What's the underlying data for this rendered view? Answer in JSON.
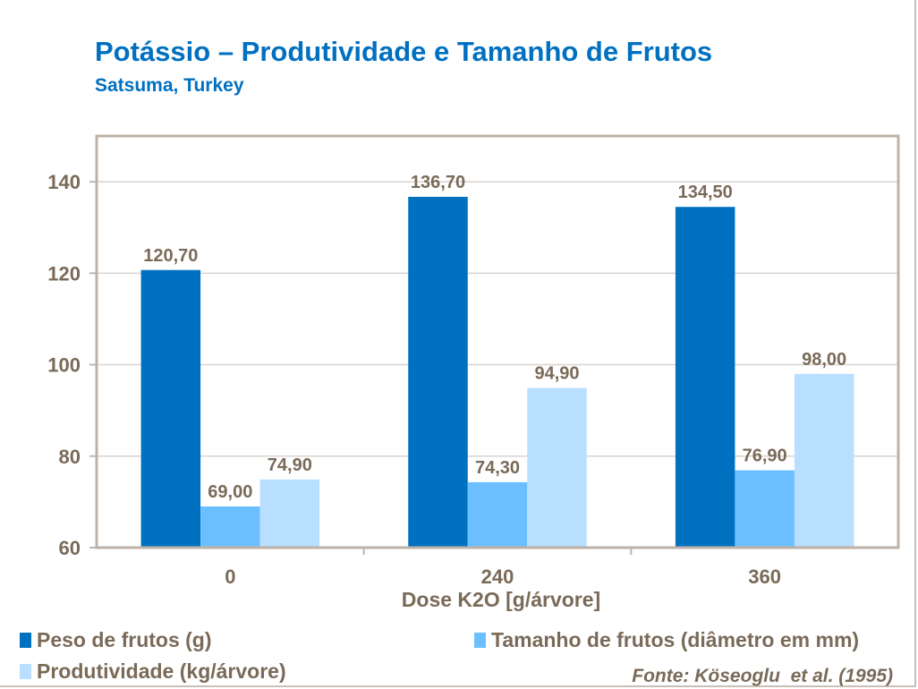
{
  "chart_data": {
    "type": "bar",
    "title": "Potássio – Produtividade e Tamanho de Frutos",
    "subtitle": "Satsuma, Turkey",
    "xlabel": "Dose K2O [g/árvore]",
    "ylabel": "",
    "categories": [
      "0",
      "240",
      "360"
    ],
    "ylim": [
      60,
      150
    ],
    "yticks": [
      60,
      80,
      100,
      120,
      140
    ],
    "grid": true,
    "legend_position": "bottom",
    "series": [
      {
        "name": "Peso de frutos (g)",
        "color": "#0070C0",
        "values": [
          120.7,
          136.7,
          134.5
        ],
        "labels": [
          "120,70",
          "136,70",
          "134,50"
        ]
      },
      {
        "name": "Tamanho de frutos (diâmetro em mm)",
        "color": "#6BBFFF",
        "values": [
          69.0,
          74.3,
          76.9
        ],
        "labels": [
          "69,00",
          "74,30",
          "76,90"
        ]
      },
      {
        "name": "Produtividade (kg/árvore)",
        "color": "#B8DFFF",
        "values": [
          74.9,
          94.9,
          98.0
        ],
        "labels": [
          "74,90",
          "94,90",
          "98,00"
        ]
      }
    ]
  },
  "source": "Fonte: Köseoglu  et al. (1995)"
}
